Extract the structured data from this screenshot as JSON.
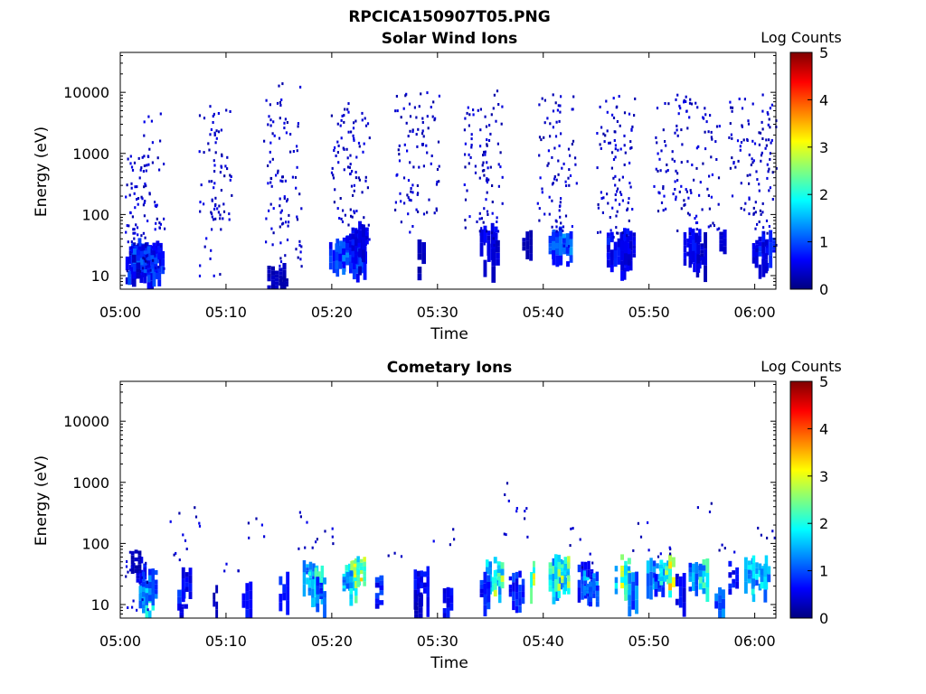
{
  "figure_title": "RPCICA150907T05.PNG",
  "colorbar_label": "Log Counts",
  "colormap": [
    "#00007f",
    "#0000ff",
    "#007fff",
    "#00ffff",
    "#7fff7f",
    "#ffff00",
    "#ff7f00",
    "#ff0000",
    "#7f0000"
  ],
  "chart_data": [
    {
      "type": "heatmap",
      "title": "Solar Wind Ions",
      "xlabel": "Time",
      "ylabel": "Energy (eV)",
      "x_ticks": [
        "05:00",
        "05:10",
        "05:20",
        "05:30",
        "05:40",
        "05:50",
        "06:00"
      ],
      "x_range_min": [
        0,
        62
      ],
      "y_scale": "log",
      "y_ticks": [
        10,
        100,
        1000,
        10000
      ],
      "y_range_ev": [
        6,
        45000
      ],
      "colorbar": {
        "label": "Log Counts",
        "range": [
          0,
          5
        ],
        "ticks": [
          0,
          1,
          2,
          3,
          4,
          5
        ]
      },
      "cells": [
        [
          1.8,
          1.3,
          22,
          0.4
        ],
        [
          2.0,
          3.0,
          20,
          0.6
        ],
        [
          2.2,
          3.0,
          22,
          0.8
        ],
        [
          2.5,
          3.0,
          25,
          0.7
        ],
        [
          2.7,
          3.0,
          19,
          0.9
        ],
        [
          1.5,
          0.8,
          14,
          0.3
        ],
        [
          14.8,
          1.8,
          10,
          0.3
        ],
        [
          15.5,
          0.8,
          7,
          0.2
        ],
        [
          21.5,
          3.5,
          27,
          0.9
        ],
        [
          21.8,
          3.0,
          23,
          1.0
        ],
        [
          22.3,
          2.0,
          33,
          0.8
        ],
        [
          22.6,
          1.5,
          38,
          0.6
        ],
        [
          23.0,
          1.0,
          45,
          0.5
        ],
        [
          28.5,
          0.8,
          25,
          0.3
        ],
        [
          34.5,
          1.0,
          38,
          0.5
        ],
        [
          35.2,
          1.0,
          45,
          0.6
        ],
        [
          35.5,
          0.8,
          30,
          0.4
        ],
        [
          38.5,
          1.0,
          38,
          0.3
        ],
        [
          41.5,
          2.0,
          33,
          1.0
        ],
        [
          41.8,
          2.0,
          38,
          1.1
        ],
        [
          46.5,
          1.0,
          35,
          0.5
        ],
        [
          47.0,
          2.0,
          30,
          0.7
        ],
        [
          48.0,
          1.5,
          35,
          0.6
        ],
        [
          47.8,
          1.0,
          22,
          0.5
        ],
        [
          54.0,
          1.5,
          32,
          0.5
        ],
        [
          54.5,
          1.5,
          37,
          0.6
        ],
        [
          55.0,
          1.0,
          30,
          0.4
        ],
        [
          57.0,
          0.7,
          40,
          0.4
        ],
        [
          61.0,
          2.0,
          33,
          0.7
        ],
        [
          60.5,
          1.5,
          27,
          0.5
        ]
      ],
      "column_bursts": [
        [
          1.5,
          12,
          1000,
          60
        ],
        [
          3.1,
          10,
          6000,
          55
        ],
        [
          8.5,
          10,
          8000,
          40
        ],
        [
          9.5,
          80,
          6000,
          40
        ],
        [
          14.6,
          30,
          8000,
          45
        ],
        [
          16.0,
          10,
          15000,
          50
        ],
        [
          21.0,
          60,
          7000,
          50
        ],
        [
          22.5,
          30,
          5000,
          40
        ],
        [
          27.0,
          50,
          10000,
          50
        ],
        [
          29.0,
          100,
          12000,
          40
        ],
        [
          33.5,
          40,
          8000,
          45
        ],
        [
          35.0,
          30,
          12000,
          50
        ],
        [
          40.5,
          60,
          10000,
          45
        ],
        [
          42.0,
          30,
          9000,
          40
        ],
        [
          46.0,
          50,
          8000,
          45
        ],
        [
          47.5,
          40,
          15000,
          45
        ],
        [
          51.5,
          100,
          8000,
          40
        ],
        [
          53.5,
          40,
          10000,
          45
        ],
        [
          55.5,
          60,
          6000,
          40
        ],
        [
          58.5,
          100,
          10000,
          40
        ],
        [
          60.5,
          60,
          10000,
          45
        ],
        [
          61.5,
          30,
          6000,
          30
        ]
      ]
    },
    {
      "type": "heatmap",
      "title": "Cometary Ions",
      "xlabel": "Time",
      "ylabel": "Energy (eV)",
      "x_ticks": [
        "05:00",
        "05:10",
        "05:20",
        "05:30",
        "05:40",
        "05:50",
        "06:00"
      ],
      "x_range_min": [
        0,
        62
      ],
      "y_scale": "log",
      "y_ticks": [
        10,
        100,
        1000,
        10000
      ],
      "y_range_ev": [
        6,
        45000
      ],
      "colorbar": {
        "label": "Log Counts",
        "range": [
          0,
          5
        ],
        "ticks": [
          0,
          1,
          2,
          3,
          4,
          5
        ]
      },
      "cells": [
        [
          2.0,
          1.0,
          35,
          0.7
        ],
        [
          2.5,
          1.5,
          15,
          1.6
        ],
        [
          2.8,
          1.5,
          25,
          1.2
        ],
        [
          1.5,
          1.0,
          60,
          0.3
        ],
        [
          5.8,
          0.8,
          12,
          0.9
        ],
        [
          6.3,
          1.0,
          25,
          0.6
        ],
        [
          6.0,
          0.8,
          8,
          0.4
        ],
        [
          9.0,
          0.5,
          12,
          0.3
        ],
        [
          12.0,
          1.0,
          15,
          0.7
        ],
        [
          15.5,
          1.0,
          20,
          0.8
        ],
        [
          18.0,
          1.5,
          35,
          1.3
        ],
        [
          18.5,
          1.5,
          25,
          1.9
        ],
        [
          19.0,
          1.0,
          18,
          1.1
        ],
        [
          22.0,
          1.5,
          35,
          2.3
        ],
        [
          22.5,
          1.5,
          40,
          2.6
        ],
        [
          21.5,
          1.0,
          25,
          1.5
        ],
        [
          24.5,
          0.8,
          20,
          0.8
        ],
        [
          28.5,
          1.5,
          25,
          0.6
        ],
        [
          28.2,
          0.8,
          10,
          0.3
        ],
        [
          31.0,
          1.0,
          12,
          0.6
        ],
        [
          35.3,
          1.5,
          32,
          1.7
        ],
        [
          35.8,
          1.0,
          40,
          2.3
        ],
        [
          34.5,
          1.0,
          20,
          0.8
        ],
        [
          37.5,
          1.5,
          22,
          0.8
        ],
        [
          39.0,
          0.5,
          38,
          2.5
        ],
        [
          41.5,
          2.0,
          35,
          1.9
        ],
        [
          41.8,
          1.5,
          40,
          2.3
        ],
        [
          44.0,
          1.5,
          30,
          0.8
        ],
        [
          44.5,
          1.5,
          25,
          1.4
        ],
        [
          44.8,
          1.0,
          18,
          1.0
        ],
        [
          47.5,
          1.5,
          30,
          1.8
        ],
        [
          47.8,
          1.0,
          40,
          2.4
        ],
        [
          48.5,
          1.0,
          20,
          1.2
        ],
        [
          50.5,
          1.5,
          35,
          1.3
        ],
        [
          51.0,
          1.0,
          25,
          1.0
        ],
        [
          51.5,
          1.0,
          38,
          1.9
        ],
        [
          52.0,
          1.0,
          40,
          2.7
        ],
        [
          53.0,
          1.0,
          20,
          0.6
        ],
        [
          54.5,
          1.5,
          32,
          1.3
        ],
        [
          55.2,
          1.0,
          35,
          1.8
        ],
        [
          56.7,
          1.0,
          12,
          1.2
        ],
        [
          58.0,
          1.0,
          32,
          0.7
        ],
        [
          59.5,
          1.0,
          35,
          1.6
        ],
        [
          60.5,
          1.5,
          38,
          1.5
        ],
        [
          61.0,
          1.0,
          30,
          1.7
        ]
      ],
      "column_bursts": [
        [
          1.5,
          8,
          90,
          20
        ],
        [
          5.5,
          10,
          550,
          6
        ],
        [
          6.5,
          80,
          420,
          6
        ],
        [
          10.0,
          30,
          50,
          4
        ],
        [
          13.0,
          100,
          280,
          5
        ],
        [
          17.5,
          80,
          420,
          8
        ],
        [
          19.5,
          100,
          200,
          4
        ],
        [
          26.0,
          50,
          100,
          3
        ],
        [
          30.5,
          100,
          230,
          4
        ],
        [
          36.5,
          80,
          1100,
          6
        ],
        [
          38.0,
          100,
          500,
          5
        ],
        [
          42.5,
          90,
          200,
          4
        ],
        [
          44.5,
          40,
          100,
          4
        ],
        [
          49.0,
          60,
          250,
          5
        ],
        [
          51.5,
          60,
          100,
          5
        ],
        [
          55.5,
          200,
          550,
          3
        ],
        [
          57.5,
          70,
          100,
          4
        ],
        [
          61.0,
          100,
          200,
          5
        ]
      ]
    }
  ]
}
